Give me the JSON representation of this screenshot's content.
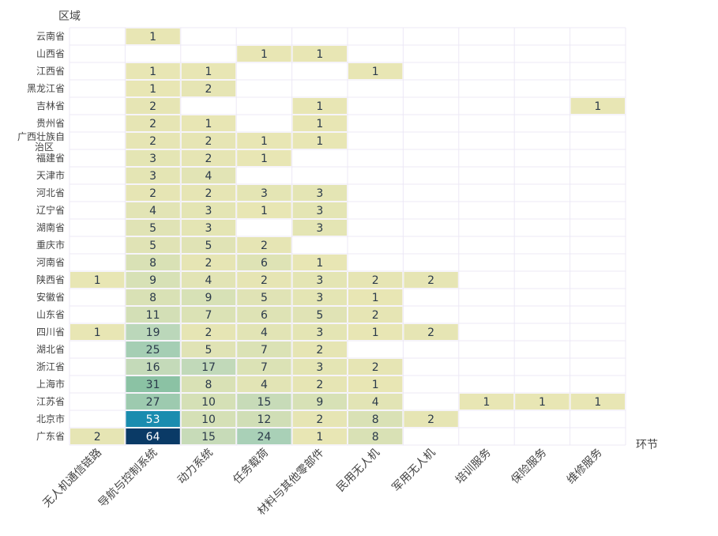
{
  "chart_data": {
    "type": "heatmap",
    "ylabel": "区域",
    "xlabel": "环节",
    "columns": [
      "无人机通信链路",
      "导航与控制系统",
      "动力系统",
      "任务载荷",
      "材料与其他零部件",
      "民用无人机",
      "军用无人机",
      "培训服务",
      "保险服务",
      "维修服务"
    ],
    "rows": [
      {
        "region": "云南省",
        "values": [
          null,
          1,
          null,
          null,
          null,
          null,
          null,
          null,
          null,
          null
        ]
      },
      {
        "region": "山西省",
        "values": [
          null,
          null,
          null,
          1,
          1,
          null,
          null,
          null,
          null,
          null
        ]
      },
      {
        "region": "江西省",
        "values": [
          null,
          1,
          1,
          null,
          null,
          1,
          null,
          null,
          null,
          null
        ]
      },
      {
        "region": "黑龙江省",
        "values": [
          null,
          1,
          2,
          null,
          null,
          null,
          null,
          null,
          null,
          null
        ]
      },
      {
        "region": "吉林省",
        "values": [
          null,
          2,
          null,
          null,
          1,
          null,
          null,
          null,
          null,
          1
        ]
      },
      {
        "region": "贵州省",
        "values": [
          null,
          2,
          1,
          null,
          1,
          null,
          null,
          null,
          null,
          null
        ]
      },
      {
        "region": "广西壮族自治区",
        "values": [
          null,
          2,
          2,
          1,
          1,
          null,
          null,
          null,
          null,
          null
        ]
      },
      {
        "region": "福建省",
        "values": [
          null,
          3,
          2,
          1,
          null,
          null,
          null,
          null,
          null,
          null
        ]
      },
      {
        "region": "天津市",
        "values": [
          null,
          3,
          4,
          null,
          null,
          null,
          null,
          null,
          null,
          null
        ]
      },
      {
        "region": "河北省",
        "values": [
          null,
          2,
          2,
          3,
          3,
          null,
          null,
          null,
          null,
          null
        ]
      },
      {
        "region": "辽宁省",
        "values": [
          null,
          4,
          3,
          1,
          3,
          null,
          null,
          null,
          null,
          null
        ]
      },
      {
        "region": "湖南省",
        "values": [
          null,
          5,
          3,
          null,
          3,
          null,
          null,
          null,
          null,
          null
        ]
      },
      {
        "region": "重庆市",
        "values": [
          null,
          5,
          5,
          2,
          null,
          null,
          null,
          null,
          null,
          null
        ]
      },
      {
        "region": "河南省",
        "values": [
          null,
          8,
          2,
          6,
          1,
          null,
          null,
          null,
          null,
          null
        ]
      },
      {
        "region": "陕西省",
        "values": [
          1,
          9,
          4,
          2,
          3,
          2,
          2,
          null,
          null,
          null
        ]
      },
      {
        "region": "安徽省",
        "values": [
          null,
          8,
          9,
          5,
          3,
          1,
          null,
          null,
          null,
          null
        ]
      },
      {
        "region": "山东省",
        "values": [
          null,
          11,
          7,
          6,
          5,
          2,
          null,
          null,
          null,
          null
        ]
      },
      {
        "region": "四川省",
        "values": [
          1,
          19,
          2,
          4,
          3,
          1,
          2,
          null,
          null,
          null
        ]
      },
      {
        "region": "湖北省",
        "values": [
          null,
          25,
          5,
          7,
          2,
          null,
          null,
          null,
          null,
          null
        ]
      },
      {
        "region": "浙江省",
        "values": [
          null,
          16,
          17,
          7,
          3,
          2,
          null,
          null,
          null,
          null
        ]
      },
      {
        "region": "上海市",
        "values": [
          null,
          31,
          8,
          4,
          2,
          1,
          null,
          null,
          null,
          null
        ]
      },
      {
        "region": "江苏省",
        "values": [
          null,
          27,
          10,
          15,
          9,
          4,
          null,
          1,
          1,
          1
        ]
      },
      {
        "region": "北京市",
        "values": [
          null,
          53,
          10,
          12,
          2,
          8,
          2,
          null,
          null,
          null
        ]
      },
      {
        "region": "广东省",
        "values": [
          2,
          64,
          15,
          24,
          1,
          8,
          null,
          null,
          null,
          null
        ]
      }
    ],
    "colorscale": [
      "#e8e6b4",
      "#d2dfb6",
      "#b2d4bc",
      "#85bfa0",
      "#5a9f80",
      "#178bb1",
      "#0a3a66"
    ],
    "value_range": [
      1,
      64
    ]
  }
}
